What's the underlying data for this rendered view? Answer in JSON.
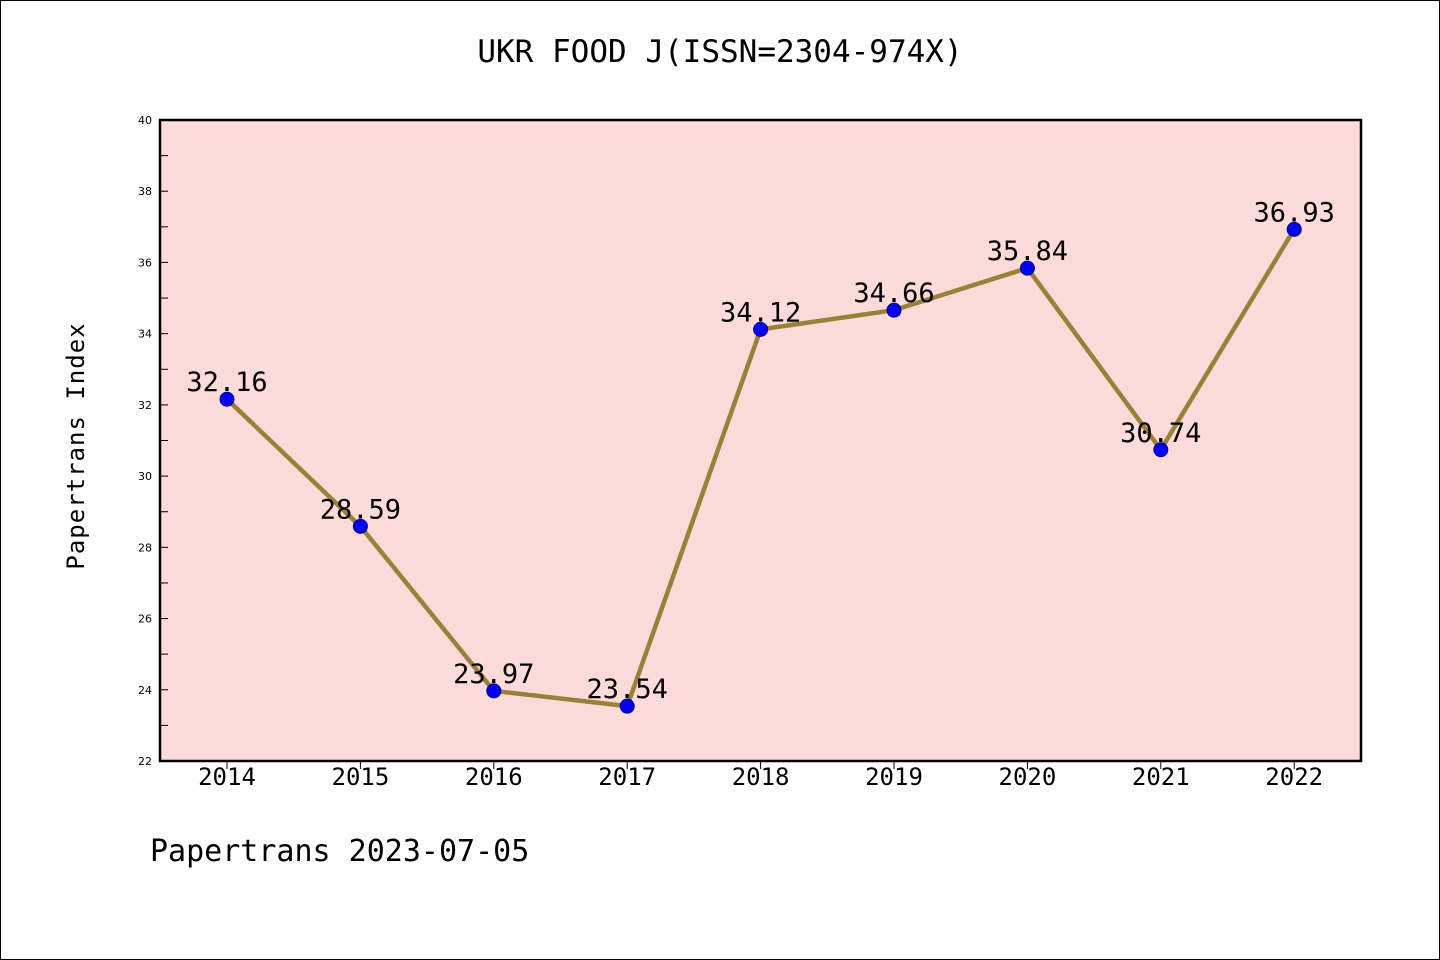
{
  "chart_data": {
    "type": "line",
    "title": "UKR FOOD J(ISSN=2304-974X)",
    "xlabel": "",
    "ylabel": "Papertrans Index",
    "categories": [
      "2014",
      "2015",
      "2016",
      "2017",
      "2018",
      "2019",
      "2020",
      "2021",
      "2022"
    ],
    "series": [
      {
        "values": [
          32.16,
          28.59,
          23.97,
          23.54,
          34.12,
          34.66,
          35.84,
          30.74,
          36.93
        ],
        "data_labels": [
          "32.16",
          "28.59",
          "23.97",
          "23.54",
          "34.12",
          "34.66",
          "35.84",
          "30.74",
          "36.93"
        ]
      }
    ],
    "ylim": [
      22,
      40
    ],
    "y_ticks": [
      22,
      24,
      26,
      28,
      30,
      32,
      34,
      36,
      38,
      40
    ],
    "grid": false,
    "colors": {
      "plot_background": "#fddbd8",
      "line": "#9a8038",
      "marker": "#0000ff"
    }
  },
  "footer": "Papertrans 2023-07-05"
}
